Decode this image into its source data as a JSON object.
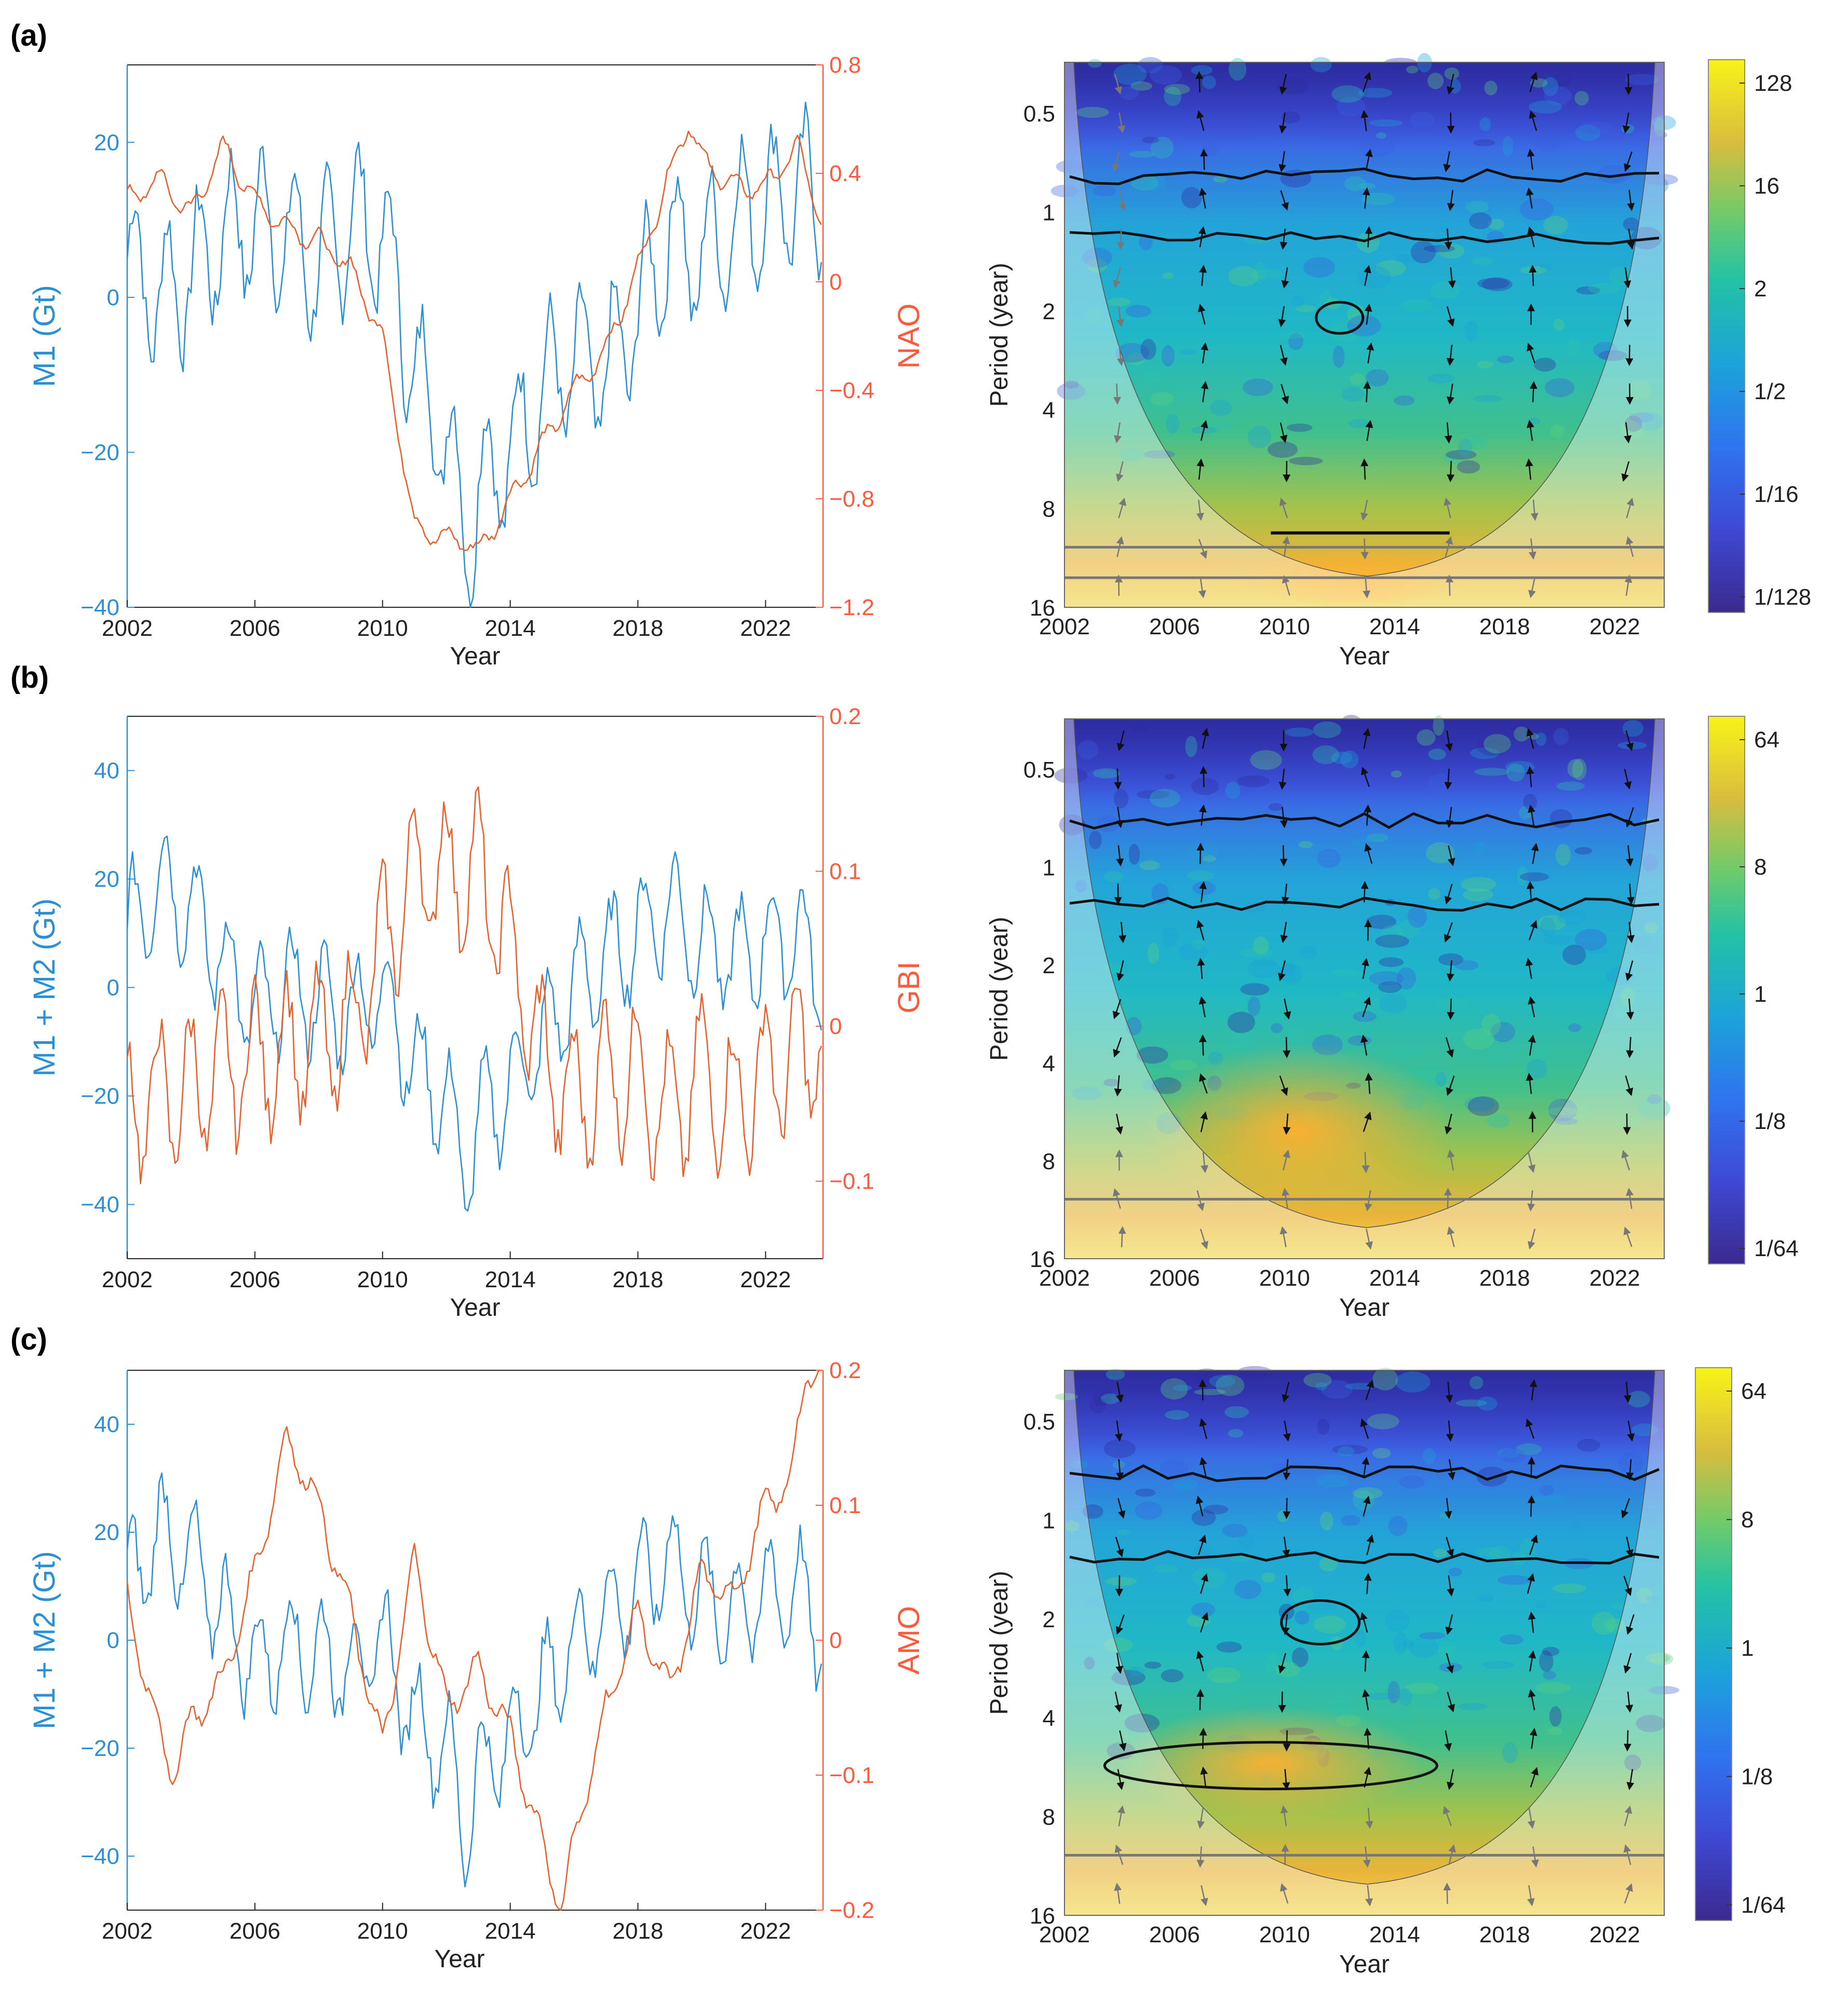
{
  "colors": {
    "blue_series": "#2b8fd6",
    "red_series": "#e8602c",
    "red_axis": "#ff5a3c",
    "contour": "#111111",
    "coi_line": "#777777",
    "arrow": "#111111"
  },
  "chart_data": [
    {
      "id": "a-left",
      "panel_label": "(a)",
      "type": "line",
      "xlabel": "Year",
      "ylabel_left": "M1 (Gt)",
      "ylabel_right": "NAO",
      "x_ticks": [
        "2002",
        "2006",
        "2010",
        "2014",
        "2018",
        "2022"
      ],
      "xlim": [
        2002,
        2023.8
      ],
      "ylim_left": [
        -40,
        30
      ],
      "yticks_left": [
        "-40",
        "-20",
        "0",
        "20"
      ],
      "ylim_right": [
        -1.2,
        0.8
      ],
      "yticks_right": [
        "-1.2",
        "-0.8",
        "-0.4",
        "0",
        "0.4",
        "0.8"
      ],
      "series": [
        {
          "name": "M1 (Gt)",
          "axis": "left",
          "anchors_x": [
            2002,
            2003,
            2004,
            2005,
            2006,
            2007,
            2008,
            2009,
            2010,
            2010.5,
            2011,
            2012,
            2012.7,
            2013,
            2014,
            2015,
            2016,
            2017,
            2018,
            2019,
            2020,
            2021,
            2022,
            2023,
            2023.8
          ],
          "anchors_y": [
            5,
            0,
            3,
            8,
            10,
            8,
            4,
            10,
            8,
            0,
            -10,
            -18,
            -32,
            -25,
            -20,
            -12,
            -8,
            -10,
            -2,
            8,
            5,
            10,
            12,
            14,
            12
          ],
          "seasonal_amplitude": 9
        },
        {
          "name": "NAO",
          "axis": "right",
          "anchors_x": [
            2002,
            2003,
            2004,
            2005,
            2006,
            2007,
            2008,
            2009,
            2010,
            2011,
            2012,
            2012.6,
            2013,
            2014,
            2015,
            2016,
            2017,
            2018,
            2019,
            2019.6,
            2020,
            2021,
            2022,
            2023,
            2023.8
          ],
          "anchors_y": [
            0.3,
            0.38,
            0.25,
            0.5,
            0.3,
            0.2,
            0.15,
            0.05,
            -0.2,
            -0.9,
            -0.95,
            -0.95,
            -1.0,
            -0.8,
            -0.6,
            -0.4,
            -0.25,
            0.05,
            0.4,
            0.6,
            0.45,
            0.35,
            0.35,
            0.5,
            0.2
          ],
          "seasonal_amplitude": 0.04
        }
      ]
    },
    {
      "id": "a-right",
      "type": "heatmap",
      "xlabel": "Year",
      "ylabel": "Period (year)",
      "x_ticks": [
        "2002",
        "2006",
        "2010",
        "2014",
        "2018",
        "2022"
      ],
      "y_ticks": [
        "0.5",
        "1",
        "2",
        "4",
        "8",
        "16"
      ],
      "colorbar_ticks": [
        "128",
        "16",
        "2",
        "1/2",
        "1/16",
        "1/128"
      ]
    },
    {
      "id": "b-left",
      "panel_label": "(b)",
      "type": "line",
      "xlabel": "Year",
      "ylabel_left": "M1 + M2 (Gt)",
      "ylabel_right": "GBI",
      "x_ticks": [
        "2002",
        "2006",
        "2010",
        "2014",
        "2018",
        "2022"
      ],
      "xlim": [
        2002,
        2023.8
      ],
      "ylim_left": [
        -50,
        50
      ],
      "yticks_left": [
        "-40",
        "-20",
        "0",
        "20",
        "40"
      ],
      "ylim_right": [
        -0.15,
        0.2
      ],
      "yticks_right": [
        "-0.1",
        "0",
        "0.1",
        "0.2"
      ],
      "series": [
        {
          "name": "M1 + M2 (Gt)",
          "axis": "left",
          "anchors_x": [
            2002,
            2003,
            2004,
            2005,
            2006,
            2007,
            2008,
            2009,
            2010,
            2011,
            2012,
            2012.6,
            2013,
            2014,
            2015,
            2016,
            2017,
            2018,
            2019,
            2020,
            2021,
            2022,
            2023,
            2023.8
          ],
          "anchors_y": [
            10,
            20,
            15,
            5,
            -5,
            0,
            -3,
            -5,
            0,
            -15,
            -20,
            -35,
            -25,
            -18,
            -10,
            0,
            5,
            10,
            15,
            8,
            5,
            8,
            10,
            0
          ],
          "seasonal_amplitude": 10
        },
        {
          "name": "GBI",
          "axis": "right",
          "anchors_x": [
            2002,
            2004,
            2006,
            2008,
            2009,
            2010,
            2011,
            2012,
            2013,
            2014,
            2015,
            2016,
            2017,
            2018,
            2019,
            2020,
            2021,
            2022,
            2023,
            2023.8
          ],
          "anchors_y": [
            -0.05,
            -0.04,
            -0.02,
            -0.01,
            0.0,
            0.05,
            0.1,
            0.1,
            0.1,
            0.05,
            -0.02,
            -0.05,
            -0.03,
            -0.03,
            -0.06,
            -0.03,
            -0.05,
            -0.03,
            -0.02,
            -0.01
          ],
          "seasonal_amplitude": 0.045
        }
      ]
    },
    {
      "id": "b-right",
      "type": "heatmap",
      "xlabel": "Year",
      "ylabel": "Period (year)",
      "x_ticks": [
        "2002",
        "2006",
        "2010",
        "2014",
        "2018",
        "2022"
      ],
      "y_ticks": [
        "0.5",
        "1",
        "2",
        "4",
        "8",
        "16"
      ],
      "colorbar_ticks": [
        "64",
        "8",
        "1",
        "1/8",
        "1/64"
      ]
    },
    {
      "id": "c-left",
      "panel_label": "(c)",
      "type": "line",
      "xlabel": "Year",
      "ylabel_left": "M1 + M2 (Gt)",
      "ylabel_right": "AMO",
      "x_ticks": [
        "2002",
        "2006",
        "2010",
        "2014",
        "2018",
        "2022"
      ],
      "xlim": [
        2002,
        2023.8
      ],
      "ylim_left": [
        -50,
        50
      ],
      "yticks_left": [
        "-40",
        "-20",
        "0",
        "20",
        "40"
      ],
      "ylim_right": [
        -0.2,
        0.2
      ],
      "yticks_right": [
        "-0.2",
        "-0.1",
        "0",
        "0.1",
        "0.2"
      ],
      "series": [
        {
          "name": "M1 + M2 (Gt)",
          "axis": "left",
          "anchors_x": [
            2002,
            2003,
            2004,
            2005,
            2006,
            2007,
            2008,
            2009,
            2010,
            2011,
            2012,
            2012.6,
            2013,
            2014,
            2015,
            2016,
            2017,
            2018,
            2019,
            2020,
            2021,
            2022,
            2023,
            2023.8
          ],
          "anchors_y": [
            10,
            20,
            15,
            5,
            -5,
            0,
            -3,
            -5,
            0,
            -15,
            -20,
            -35,
            -25,
            -18,
            -10,
            0,
            5,
            10,
            15,
            8,
            5,
            8,
            10,
            0
          ],
          "seasonal_amplitude": 10
        },
        {
          "name": "AMO",
          "axis": "right",
          "anchors_x": [
            2002,
            2002.8,
            2003.4,
            2004,
            2005,
            2006,
            2007,
            2008,
            2009,
            2010,
            2011,
            2012,
            2013,
            2014,
            2015,
            2015.6,
            2016,
            2017,
            2018,
            2019,
            2020,
            2021,
            2022,
            2022.8,
            2023.3,
            2023.8
          ],
          "anchors_y": [
            0.03,
            -0.05,
            -0.1,
            -0.06,
            -0.03,
            0.05,
            0.15,
            0.1,
            0.02,
            -0.08,
            0.06,
            -0.05,
            -0.02,
            -0.07,
            -0.15,
            -0.2,
            -0.15,
            -0.05,
            0.02,
            -0.04,
            0.05,
            0.03,
            0.1,
            0.12,
            0.2,
            0.2
          ],
          "seasonal_amplitude": 0.012
        }
      ]
    },
    {
      "id": "c-right",
      "type": "heatmap",
      "xlabel": "Year",
      "ylabel": "Period (year)",
      "x_ticks": [
        "2002",
        "2006",
        "2010",
        "2014",
        "2018",
        "2022"
      ],
      "y_ticks": [
        "0.5",
        "1",
        "2",
        "4",
        "8",
        "16"
      ],
      "colorbar_ticks": [
        "64",
        "8",
        "1",
        "1/8",
        "1/64"
      ]
    }
  ]
}
